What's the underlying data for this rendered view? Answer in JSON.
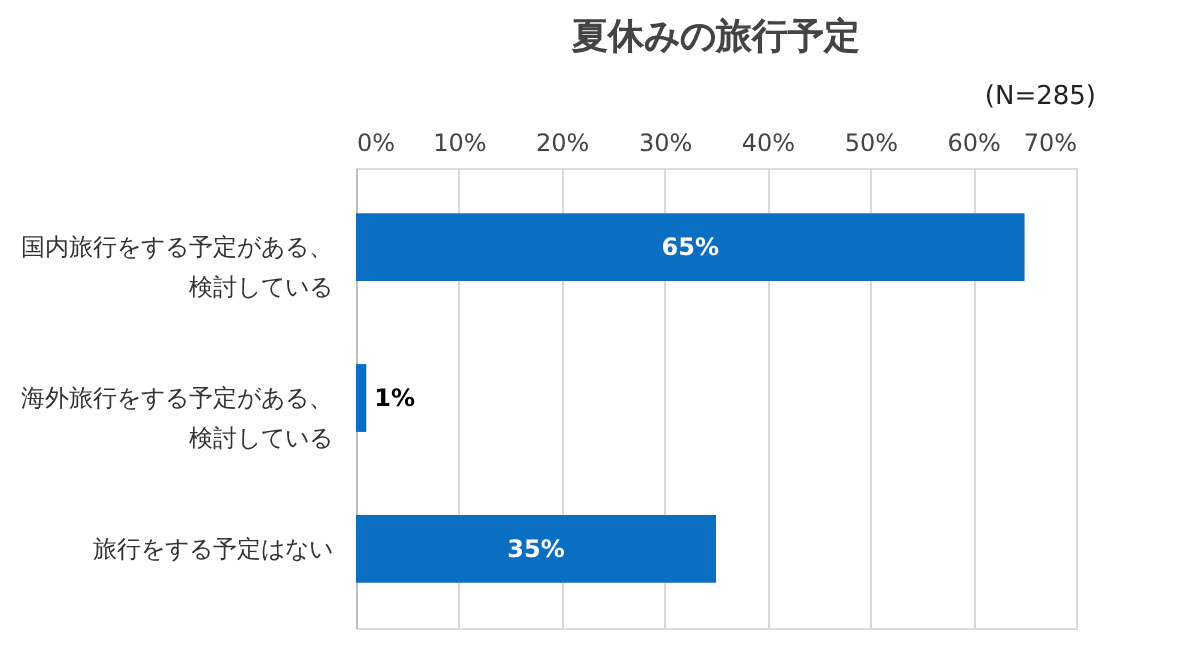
{
  "chart_data": {
    "type": "bar",
    "orientation": "horizontal",
    "title": "夏休みの旅行予定",
    "annotations": [
      "(N=285)"
    ],
    "categories": [
      "国内旅行をする予定がある、検討している",
      "海外旅行をする予定がある、検討している",
      "旅行をする予定はない"
    ],
    "values": [
      65,
      1,
      35
    ],
    "color": "#0a6fc2",
    "value_labels": [
      "65%",
      "1%",
      "35%"
    ],
    "xlim": [
      0,
      70
    ],
    "xticks": [
      {
        "value": 0,
        "label": "0%"
      },
      {
        "value": 10,
        "label": "10%"
      },
      {
        "value": 20,
        "label": "20%"
      },
      {
        "value": 30,
        "label": "30%"
      },
      {
        "value": 40,
        "label": "40%"
      },
      {
        "value": 50,
        "label": "50%"
      },
      {
        "value": 60,
        "label": "60%"
      },
      {
        "value": 70,
        "label": "70%"
      }
    ],
    "grid": true
  }
}
